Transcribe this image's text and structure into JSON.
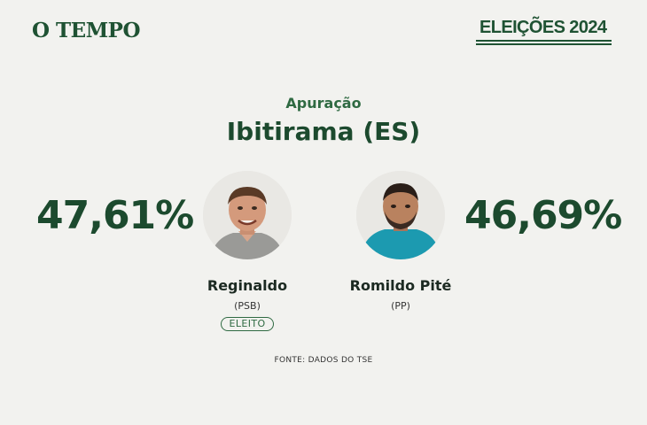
{
  "header": {
    "brand": "O TEMPO",
    "badge": "ELEIÇÕES 2024"
  },
  "main": {
    "subtitle": "Apuração",
    "title": "Ibitirama (ES)"
  },
  "candidates": [
    {
      "name": "Reginaldo",
      "party": "(PSB)",
      "percent": "47,61%",
      "status": "ELEITO",
      "photo_icon": "candidate-photo-reginaldo"
    },
    {
      "name": "Romildo Pité",
      "party": "(PP)",
      "percent": "46,69%",
      "photo_icon": "candidate-photo-romildo"
    }
  ],
  "footer": {
    "source": "FONTE: DADOS DO TSE"
  },
  "colors": {
    "background": "#f2f2ef",
    "brand_green": "#1f5233",
    "text_green": "#1c4a2e"
  }
}
